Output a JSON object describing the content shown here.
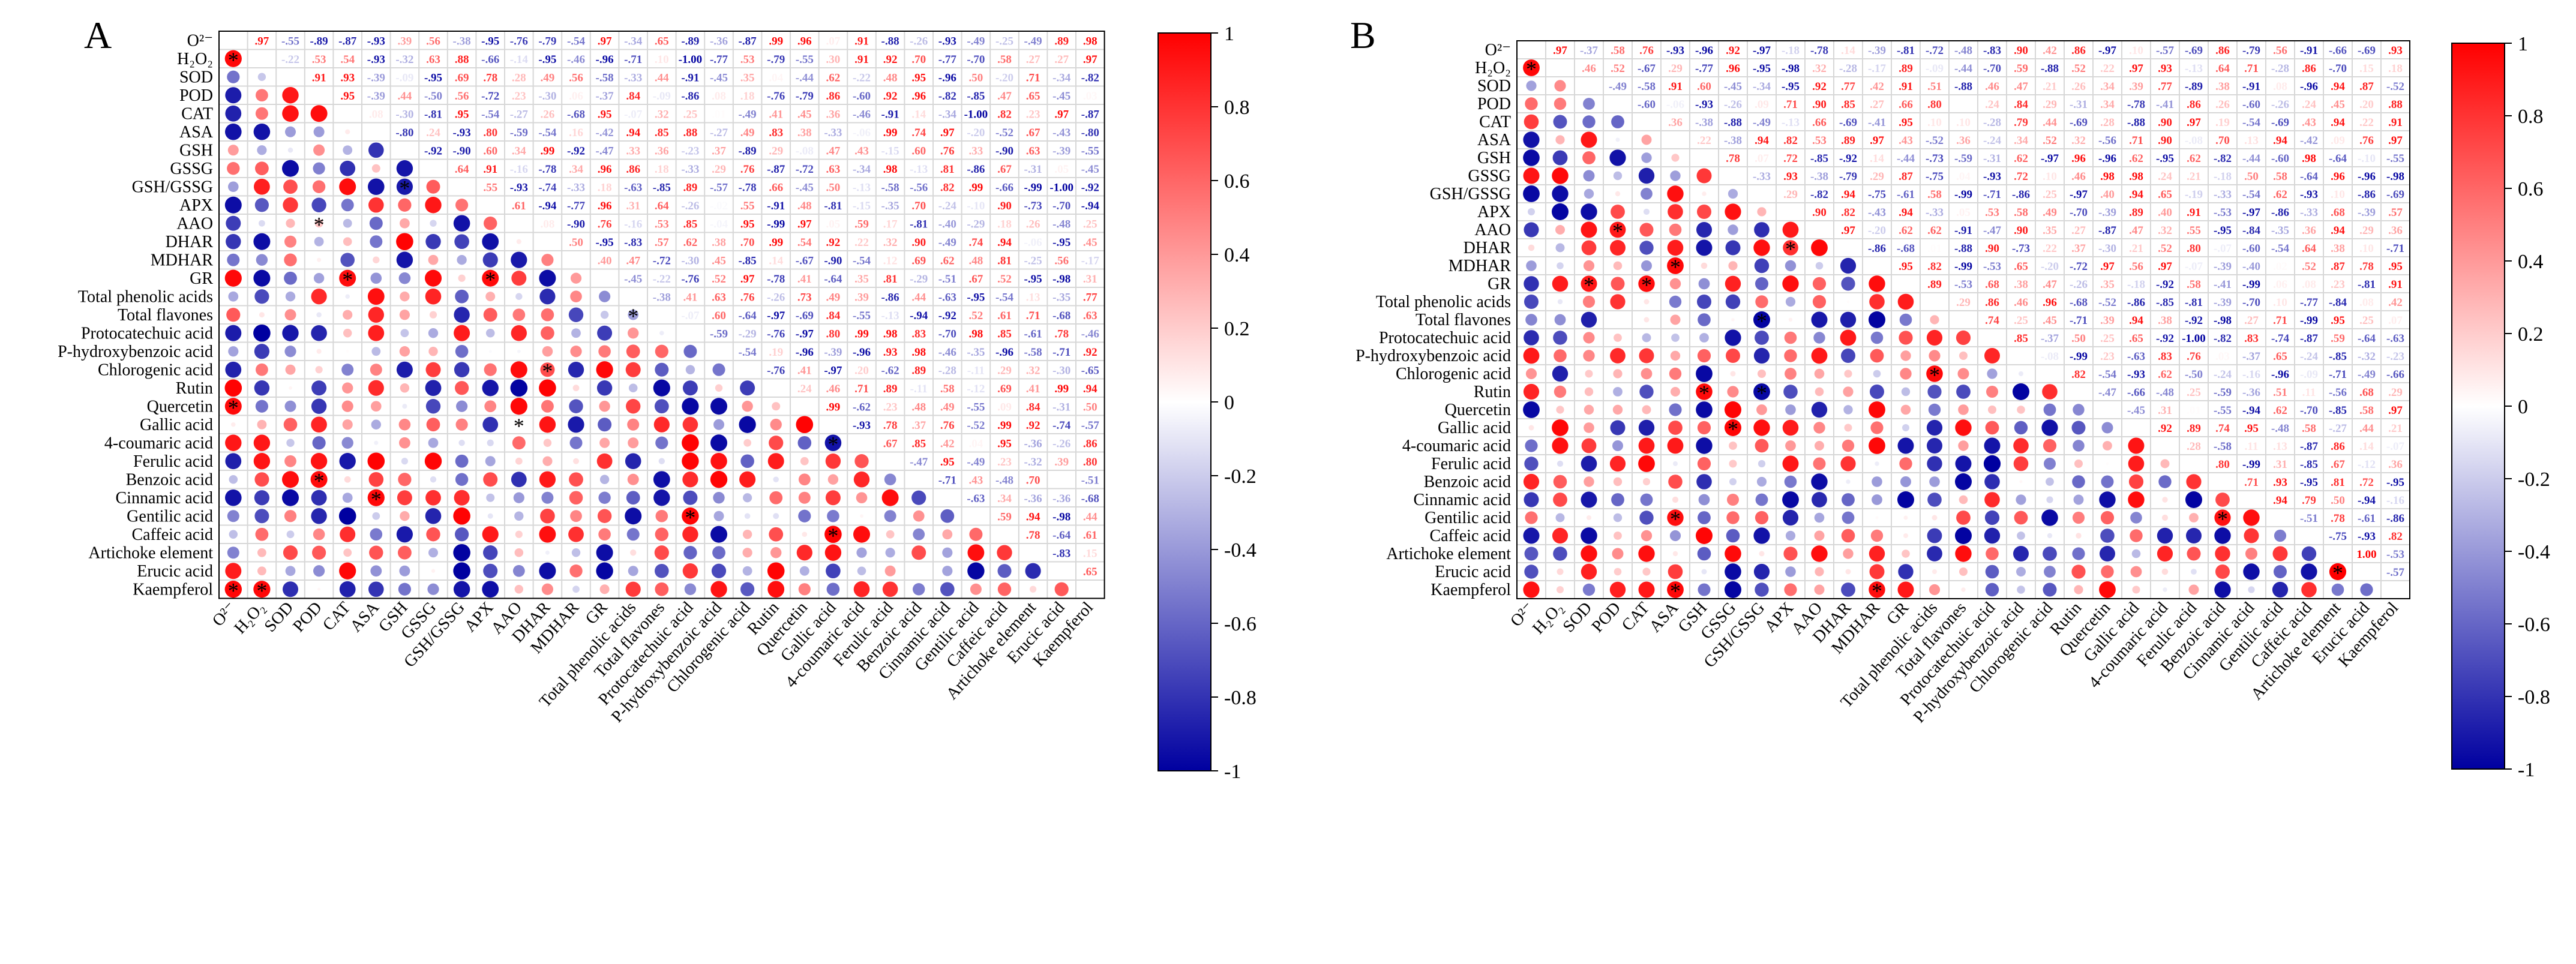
{
  "figure": {
    "panels": [
      "A",
      "B"
    ],
    "colorbar_ticks": [
      "1",
      "0.8",
      "0.6",
      "0.4",
      "0.2",
      "0",
      "-0.2",
      "-0.4",
      "-0.6",
      "-0.8",
      "-1"
    ],
    "colors": {
      "positive": "#ff0000",
      "negative": "#0000a0",
      "neutral": "#ffffff",
      "grid": "#d7d7d7"
    }
  },
  "chart_data": [
    {
      "panel": "A",
      "type": "heatmap",
      "subtype": "correlation-matrix (lower: circles, upper: coefficients)",
      "variables": [
        "O2-",
        "H2O2",
        "SOD",
        "POD",
        "CAT",
        "ASA",
        "GSH",
        "GSSG",
        "GSH/GSSG",
        "APX",
        "AAO",
        "DHAR",
        "MDHAR",
        "GR",
        "Total phenolic acids",
        "Total flavones",
        "Protocatechuic acid",
        "P-hydroxybenzoic acid",
        "Chlorogenic acid",
        "Rutin",
        "Quercetin",
        "Gallic acid",
        "4-coumaric acid",
        "Ferulic acid",
        "Benzoic acid",
        "Cinnamic acid",
        "Gentilic acid",
        "Caffeic acid",
        "Artichoke element",
        "Erucic acid",
        "Kaempferol"
      ],
      "labels_display": [
        "O²⁻",
        "H₂O₂",
        "SOD",
        "POD",
        "CAT",
        "ASA",
        "GSH",
        "GSSG",
        "GSH/GSSG",
        "APX",
        "AAO",
        "DHAR",
        "MDHAR",
        "GR",
        "Total phenolic acids",
        "Total flavones",
        "Protocatechuic acid",
        "P-hydroxybenzoic acid",
        "Chlorogenic acid",
        "Rutin",
        "Quercetin",
        "Gallic acid",
        "4-coumaric acid",
        "Ferulic acid",
        "Benzoic acid",
        "Cinnamic acid",
        "Gentilic acid",
        "Caffeic acid",
        "Artichoke element",
        "Erucic acid",
        "Kaempferol"
      ],
      "color_range": [
        -1,
        1
      ],
      "seed": 11,
      "highlights": [
        [
          1,
          0,
          0.97
        ],
        [
          2,
          1,
          -0.22
        ],
        [
          3,
          2,
          0.91
        ],
        [
          4,
          2,
          0.93
        ],
        [
          4,
          3,
          0.95
        ],
        [
          5,
          0,
          -0.93
        ],
        [
          5,
          1,
          -0.93
        ],
        [
          8,
          6,
          -0.9
        ],
        [
          13,
          4,
          0.95
        ],
        [
          13,
          9,
          0.96
        ],
        [
          20,
          0,
          0.96
        ],
        [
          23,
          5,
          0.99
        ],
        [
          24,
          2,
          0.95
        ],
        [
          24,
          3,
          0.96
        ],
        [
          25,
          5,
          0.97
        ],
        [
          25,
          0,
          -0.93
        ],
        [
          26,
          16,
          0.98
        ],
        [
          27,
          21,
          0.99
        ],
        [
          30,
          0,
          0.98
        ],
        [
          30,
          1,
          0.97
        ],
        [
          22,
          21,
          -0.93
        ],
        [
          29,
          28,
          -0.83
        ],
        [
          14,
          1,
          -0.71
        ],
        [
          15,
          0,
          0.65
        ],
        [
          12,
          6,
          -0.92
        ]
      ],
      "significant": [
        [
          1,
          0
        ],
        [
          8,
          6
        ],
        [
          10,
          3
        ],
        [
          13,
          4
        ],
        [
          13,
          9
        ],
        [
          20,
          0
        ],
        [
          21,
          10
        ],
        [
          22,
          21
        ],
        [
          24,
          3
        ],
        [
          25,
          5
        ],
        [
          26,
          16
        ],
        [
          27,
          21
        ],
        [
          30,
          0
        ],
        [
          30,
          1
        ],
        [
          15,
          14
        ],
        [
          18,
          11
        ]
      ]
    },
    {
      "panel": "B",
      "type": "heatmap",
      "subtype": "correlation-matrix (lower: circles, upper: coefficients)",
      "variables": [
        "O2-",
        "H2O2",
        "SOD",
        "POD",
        "CAT",
        "ASA",
        "GSH",
        "GSSG",
        "GSH/GSSG",
        "APX",
        "AAO",
        "DHAR",
        "MDHAR",
        "GR",
        "Total phenolic acids",
        "Total flavones",
        "Protocatechuic acid",
        "P-hydroxybenzoic acid",
        "Chlorogenic acid",
        "Rutin",
        "Quercetin",
        "Gallic acid",
        "4-coumaric acid",
        "Ferulic acid",
        "Benzoic acid",
        "Cinnamic acid",
        "Gentilic acid",
        "Caffeic acid",
        "Artichoke element",
        "Erucic acid",
        "Kaempferol"
      ],
      "labels_display": [
        "O²⁻",
        "H₂O₂",
        "SOD",
        "POD",
        "CAT",
        "ASA",
        "GSH",
        "GSSG",
        "GSH/GSSG",
        "APX",
        "AAO",
        "DHAR",
        "MDHAR",
        "GR",
        "Total phenolic acids",
        "Total flavones",
        "Protocatechuic acid",
        "P-hydroxybenzoic acid",
        "Chlorogenic acid",
        "Rutin",
        "Quercetin",
        "Gallic acid",
        "4-coumaric acid",
        "Ferulic acid",
        "Benzoic acid",
        "Cinnamic acid",
        "Gentilic acid",
        "Caffeic acid",
        "Artichoke element",
        "Erucic acid",
        "Kaempferol"
      ],
      "color_range": [
        -1,
        1
      ],
      "seed": 29,
      "highlights": [
        [
          1,
          0,
          0.97
        ],
        [
          2,
          0,
          -0.37
        ],
        [
          5,
          0,
          -0.93
        ],
        [
          6,
          0,
          -0.96
        ],
        [
          7,
          0,
          0.92
        ],
        [
          7,
          1,
          0.96
        ],
        [
          8,
          0,
          -0.97
        ],
        [
          12,
          5,
          0.97
        ],
        [
          11,
          10,
          0.97
        ],
        [
          10,
          9,
          0.9
        ],
        [
          13,
          2,
          0.91
        ],
        [
          13,
          4,
          0.95
        ],
        [
          15,
          8,
          -0.99
        ],
        [
          19,
          6,
          0.96
        ],
        [
          19,
          8,
          -0.97
        ],
        [
          21,
          7,
          0.98
        ],
        [
          21,
          1,
          0.97
        ],
        [
          26,
          5,
          0.94
        ],
        [
          26,
          24,
          0.93
        ],
        [
          27,
          8,
          -0.93
        ],
        [
          29,
          28,
          1.0
        ],
        [
          30,
          5,
          0.97
        ],
        [
          30,
          12,
          0.95
        ],
        [
          18,
          14,
          0.96
        ],
        [
          22,
          21,
          0.92
        ]
      ],
      "significant": [
        [
          1,
          0
        ],
        [
          10,
          3
        ],
        [
          11,
          9
        ],
        [
          12,
          5
        ],
        [
          13,
          2
        ],
        [
          13,
          4
        ],
        [
          15,
          8
        ],
        [
          18,
          14
        ],
        [
          19,
          6
        ],
        [
          19,
          8
        ],
        [
          21,
          7
        ],
        [
          26,
          5
        ],
        [
          26,
          24
        ],
        [
          29,
          28
        ],
        [
          30,
          5
        ],
        [
          30,
          12
        ]
      ]
    }
  ]
}
